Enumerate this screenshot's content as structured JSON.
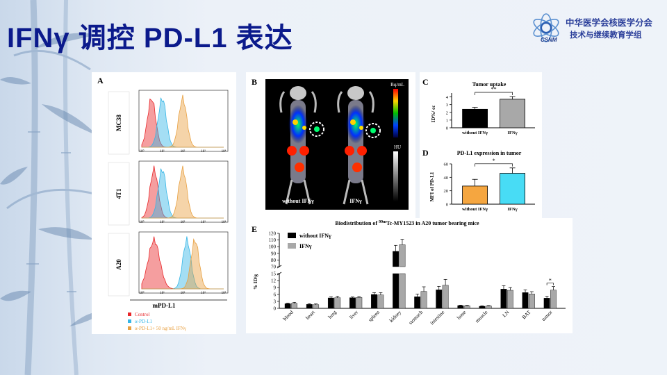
{
  "slide": {
    "title": "IFNγ 调控 PD-L1 表达",
    "org_line1": "中华医学会核医学分会",
    "org_line2": "技术与继续教育学组",
    "org_abbr": "CSNM"
  },
  "panel_a": {
    "letter": "A",
    "rows": [
      "MC38",
      "4T1",
      "A20"
    ],
    "xlabel": "mPD-L1",
    "tick_labels": [
      "10⁰",
      "10¹",
      "10²",
      "10³",
      "10⁴"
    ],
    "legend": [
      {
        "label": "Control",
        "color": "#e8272a"
      },
      {
        "label": "α-PD-L1",
        "color": "#36b6e6"
      },
      {
        "label": "α-PD-L1+ 50 ng/mL IFNγ",
        "color": "#e8a040"
      }
    ]
  },
  "panel_b": {
    "letter": "B",
    "scale_top": "Bq/mL",
    "scale_bottom": "HU",
    "label_left": "without IFNγ",
    "label_right": "IFNγ"
  },
  "panel_c": {
    "letter": "C",
    "chart_data": {
      "type": "bar",
      "title": "Tumor uptake",
      "ylabel": "ID%/ cc",
      "categories": [
        "without IFNγ",
        "IFNγ"
      ],
      "values": [
        2.4,
        3.7
      ],
      "errors": [
        0.25,
        0.35
      ],
      "colors": [
        "#000000",
        "#a8a8a8"
      ],
      "ylim": [
        0,
        4.5
      ],
      "significance": "**"
    }
  },
  "panel_d": {
    "letter": "D",
    "chart_data": {
      "type": "bar",
      "title": "PD-L1 expression in tumor",
      "ylabel": "MFI of PD-L1",
      "categories": [
        "without IFNγ",
        "IFNγ"
      ],
      "values": [
        27,
        46
      ],
      "errors": [
        10,
        8
      ],
      "colors": [
        "#f5a640",
        "#48dcf5"
      ],
      "ylim": [
        0,
        60
      ],
      "yticks": [
        0,
        20,
        40,
        60
      ],
      "significance": "*"
    }
  },
  "panel_e": {
    "letter": "E",
    "chart_data": {
      "type": "bar",
      "title_prefix": "Biodistribution of ",
      "title_sup": "99m",
      "title_suffix": "Tc-MY1523 in A20 tumor bearing mice",
      "ylabel": "% ID/g",
      "categories": [
        "blood",
        "heart",
        "lung",
        "liver",
        "spleen",
        "kidney",
        "stomach",
        "intestine",
        "bone",
        "muscle",
        "LN",
        "BAT",
        "tumor"
      ],
      "series": [
        {
          "name": "without IFNγ",
          "color": "#000000",
          "values": [
            2.0,
            1.7,
            4.5,
            4.6,
            6.0,
            93,
            5.0,
            8.0,
            1.2,
            0.9,
            8.3,
            6.8,
            4.4
          ],
          "errors": [
            0.3,
            0.3,
            0.5,
            0.3,
            0.8,
            9,
            1.2,
            1.5,
            0.2,
            0.2,
            1.5,
            1.2,
            0.8
          ]
        },
        {
          "name": "IFNγ",
          "color": "#a8a8a8",
          "values": [
            2.2,
            1.6,
            4.6,
            4.7,
            5.8,
            103,
            7.3,
            10.0,
            1.1,
            1.0,
            7.8,
            6.2,
            7.9
          ],
          "errors": [
            0.4,
            0.3,
            0.6,
            0.4,
            1.0,
            8,
            2.0,
            2.5,
            0.2,
            0.2,
            1.2,
            1.0,
            1.5
          ]
        }
      ],
      "lower_ticks": [
        0,
        3,
        6,
        9,
        12,
        15
      ],
      "upper_ticks": [
        70,
        80,
        90,
        100,
        110,
        120
      ],
      "axis_break": [
        15,
        70
      ],
      "significance": {
        "category": "tumor",
        "mark": "*"
      }
    }
  }
}
